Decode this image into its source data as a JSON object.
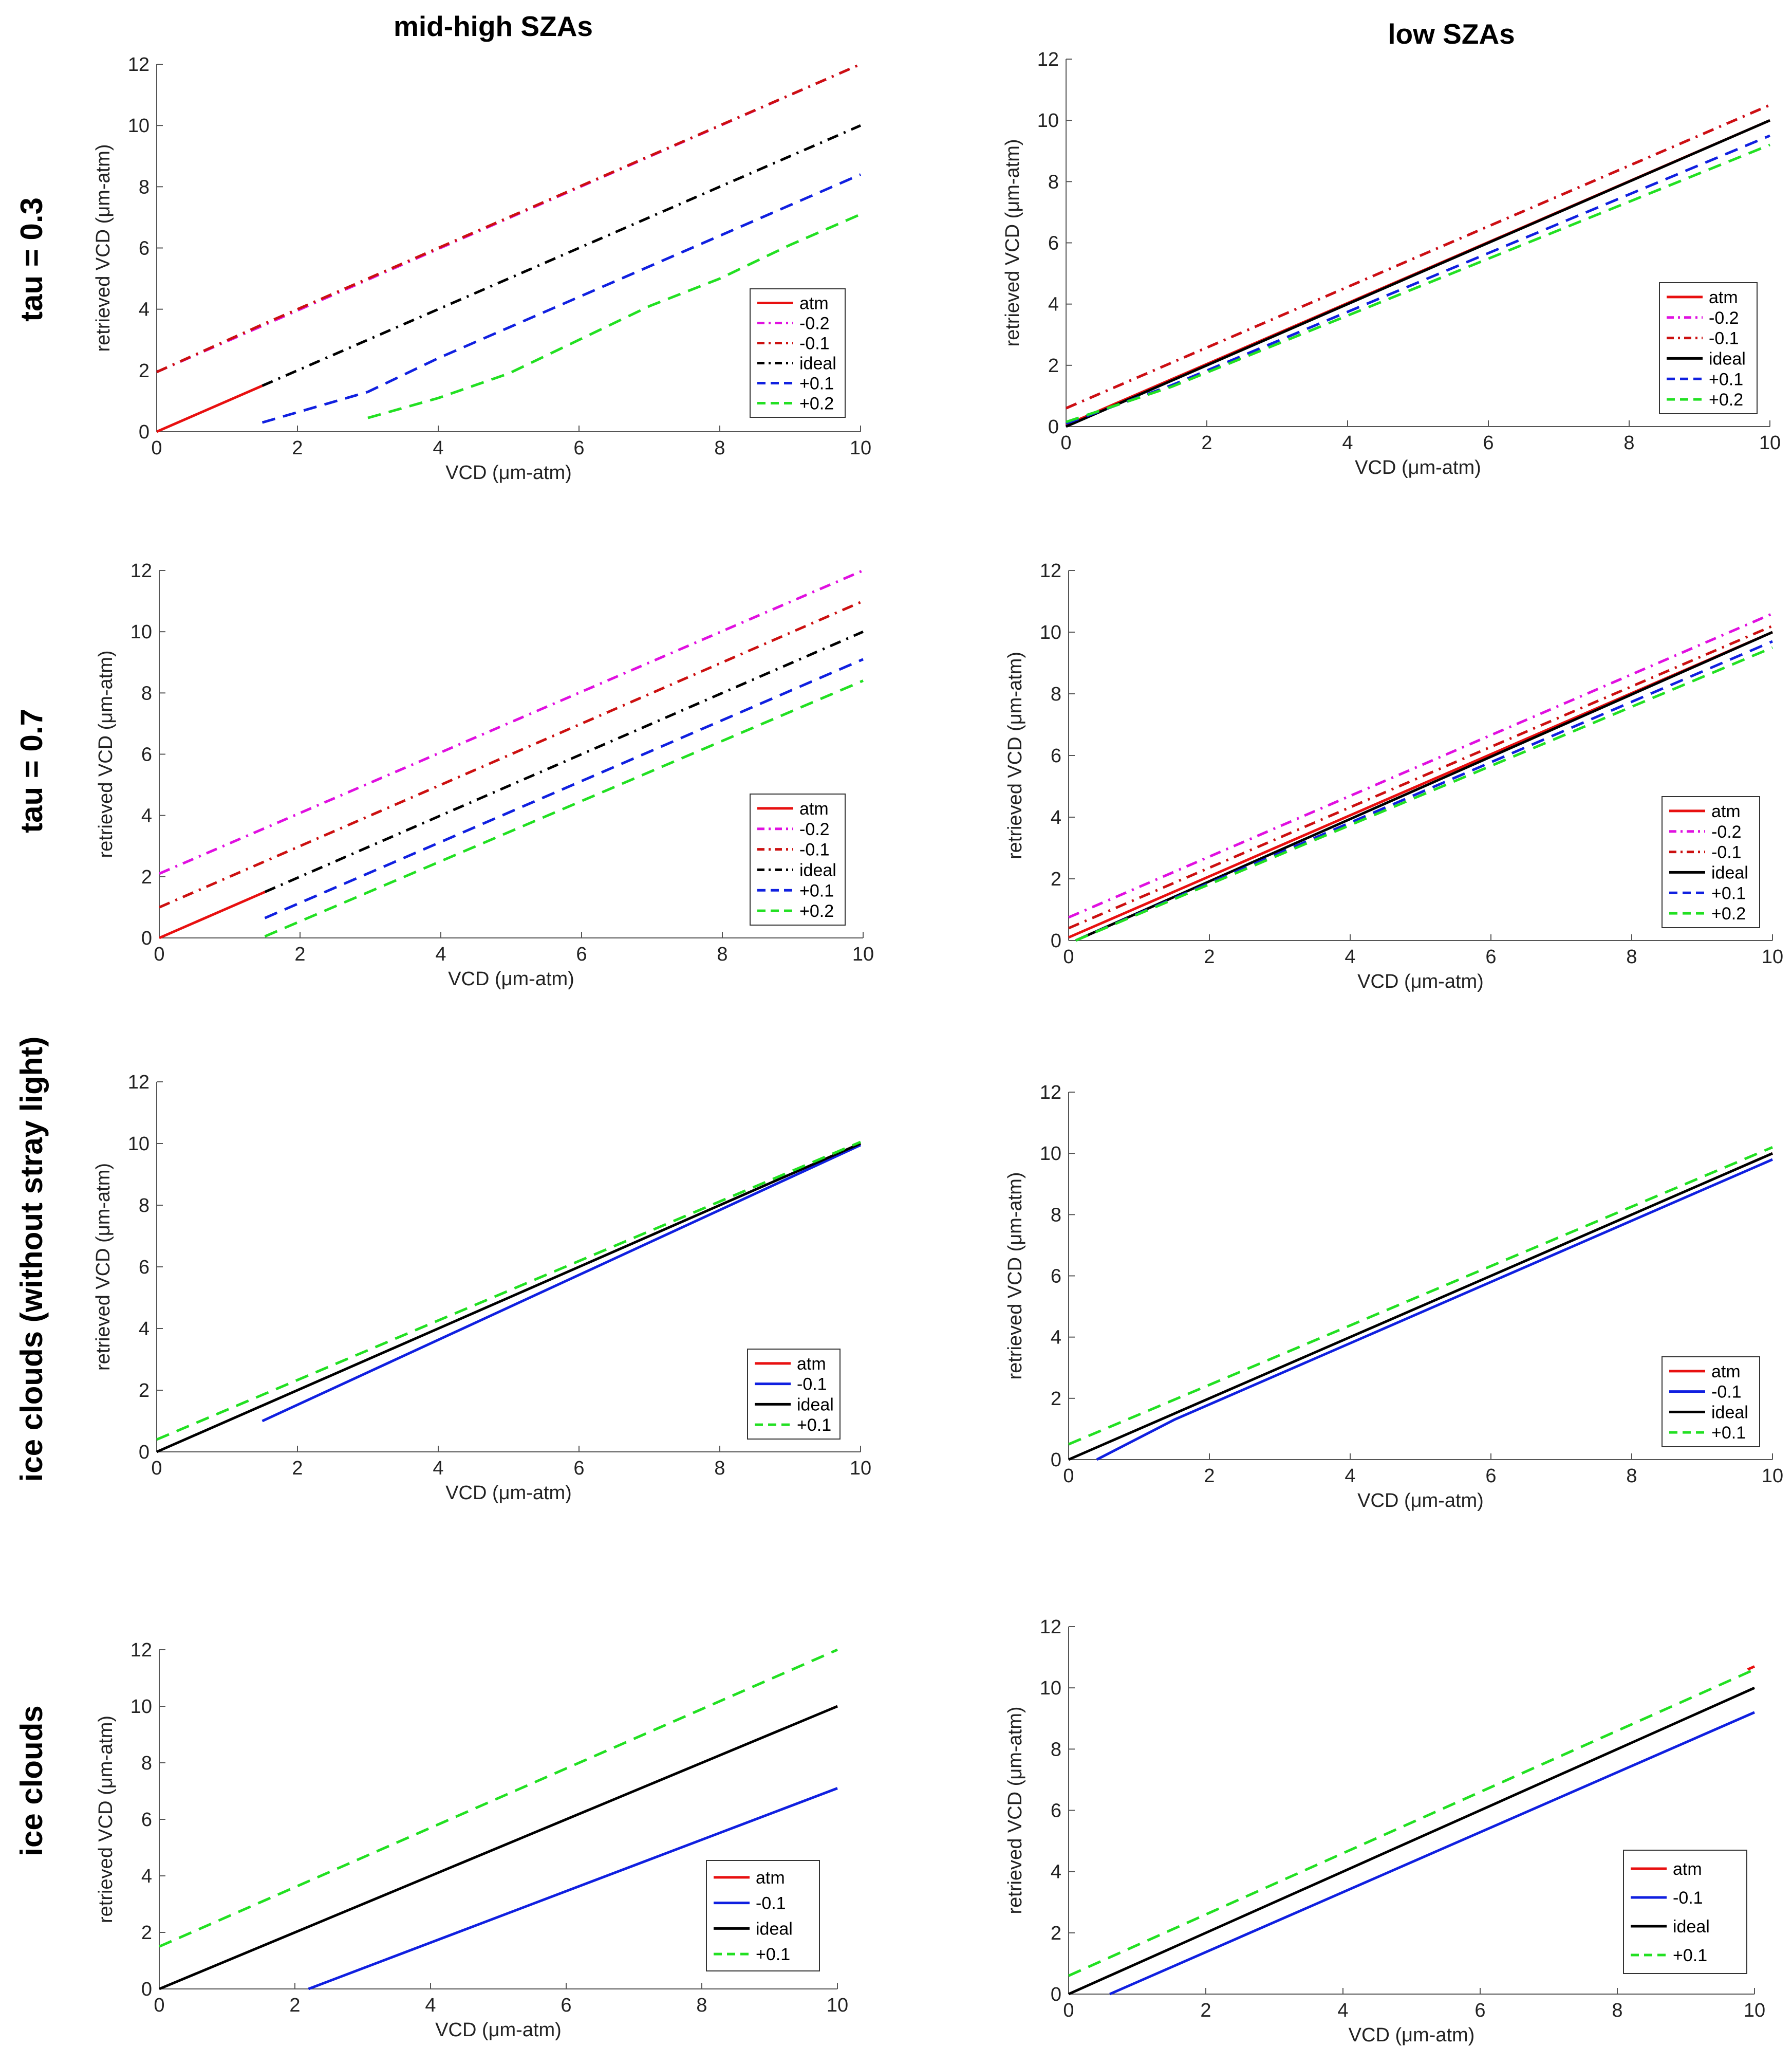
{
  "figure": {
    "col_titles": [
      "mid-high SZAs",
      "low SZAs"
    ],
    "row_labels": [
      "tau = 0.3",
      "tau = 0.7",
      "ice clouds (without stray light)",
      "ice clouds"
    ]
  },
  "colors": {
    "atm": "#e81010",
    "m02": "#e010e0",
    "m01": "#cc1010",
    "ideal": "#000000",
    "blue": "#1020e0",
    "green": "#22e022"
  },
  "chart_data": [
    {
      "type": "line",
      "panel": "tau = 0.3 / mid-high SZAs",
      "xlabel": "VCD (μm-atm)",
      "ylabel": "retrieved VCD (μm-atm)",
      "xlim": [
        0,
        10
      ],
      "ylim": [
        0,
        12
      ],
      "xticks": [
        "0",
        "2",
        "4",
        "6",
        "8",
        "10"
      ],
      "yticks": [
        "0",
        "2",
        "4",
        "6",
        "8",
        "10",
        "12"
      ],
      "series": [
        {
          "name": "atm",
          "color": "atm",
          "style": "solid",
          "x": [
            0,
            1.5
          ],
          "y": [
            0,
            1.5
          ]
        },
        {
          "name": "-0.2",
          "color": "m02",
          "style": "dashdot",
          "x": [
            0,
            10
          ],
          "y": [
            1.95,
            12
          ]
        },
        {
          "name": "-0.1",
          "color": "m01",
          "style": "dashdot",
          "x": [
            0,
            1.5,
            10
          ],
          "y": [
            1.95,
            3.5,
            12
          ]
        },
        {
          "name": "ideal",
          "color": "ideal",
          "style": "dashdot",
          "x": [
            1.5,
            10
          ],
          "y": [
            1.5,
            10
          ]
        },
        {
          "name": "+0.1",
          "color": "blue",
          "style": "dash",
          "x": [
            1.5,
            3,
            4,
            5,
            6,
            7,
            8,
            9,
            10
          ],
          "y": [
            0.3,
            1.3,
            2.4,
            3.4,
            4.4,
            5.4,
            6.4,
            7.4,
            8.4
          ]
        },
        {
          "name": "+0.2",
          "color": "green",
          "style": "dash",
          "x": [
            3,
            4,
            5,
            6,
            7,
            8,
            9,
            10
          ],
          "y": [
            0.45,
            1.1,
            1.9,
            3.0,
            4.1,
            5.0,
            6.1,
            7.1
          ]
        }
      ]
    },
    {
      "type": "line",
      "panel": "tau = 0.3 / low SZAs",
      "xlabel": "VCD (μm-atm)",
      "ylabel": "retrieved VCD (μm-atm)",
      "xlim": [
        0,
        10
      ],
      "ylim": [
        0,
        12
      ],
      "xticks": [
        "0",
        "2",
        "4",
        "6",
        "8",
        "10"
      ],
      "yticks": [
        "0",
        "2",
        "4",
        "6",
        "8",
        "10",
        "12"
      ],
      "series": [
        {
          "name": "atm",
          "color": "atm",
          "style": "solid",
          "x": [
            0,
            10
          ],
          "y": [
            0.05,
            10
          ]
        },
        {
          "name": "-0.2",
          "color": "m02",
          "style": "dashdot",
          "x": [
            0,
            10
          ],
          "y": [
            0.6,
            10.5
          ]
        },
        {
          "name": "-0.1",
          "color": "m01",
          "style": "dashdot",
          "x": [
            0,
            10
          ],
          "y": [
            0.6,
            10.5
          ]
        },
        {
          "name": "ideal",
          "color": "ideal",
          "style": "solid",
          "x": [
            0,
            10
          ],
          "y": [
            0,
            10
          ]
        },
        {
          "name": "+0.1",
          "color": "blue",
          "style": "dash",
          "x": [
            0,
            1.5,
            10
          ],
          "y": [
            0.1,
            1.35,
            9.5
          ]
        },
        {
          "name": "+0.2",
          "color": "green",
          "style": "dash",
          "x": [
            0,
            1.5,
            10
          ],
          "y": [
            0.15,
            1.3,
            9.2
          ]
        }
      ]
    },
    {
      "type": "line",
      "panel": "tau = 0.7 / mid-high SZAs",
      "xlabel": "VCD (μm-atm)",
      "ylabel": "retrieved VCD (μm-atm)",
      "xlim": [
        0,
        10
      ],
      "ylim": [
        0,
        12
      ],
      "xticks": [
        "0",
        "2",
        "4",
        "6",
        "8",
        "10"
      ],
      "yticks": [
        "0",
        "2",
        "4",
        "6",
        "8",
        "10",
        "12"
      ],
      "series": [
        {
          "name": "atm",
          "color": "atm",
          "style": "solid",
          "x": [
            0,
            1.5
          ],
          "y": [
            0,
            1.5
          ]
        },
        {
          "name": "-0.2",
          "color": "m02",
          "style": "dashdot",
          "x": [
            0,
            10
          ],
          "y": [
            2.1,
            12
          ]
        },
        {
          "name": "-0.1",
          "color": "m01",
          "style": "dashdot",
          "x": [
            0,
            10
          ],
          "y": [
            1.0,
            11
          ]
        },
        {
          "name": "ideal",
          "color": "ideal",
          "style": "dashdot",
          "x": [
            1.5,
            10
          ],
          "y": [
            1.5,
            10
          ]
        },
        {
          "name": "+0.1",
          "color": "blue",
          "style": "dash",
          "x": [
            1.5,
            10
          ],
          "y": [
            0.65,
            9.1
          ]
        },
        {
          "name": "+0.2",
          "color": "green",
          "style": "dash",
          "x": [
            1.5,
            10
          ],
          "y": [
            0.05,
            8.4
          ]
        }
      ]
    },
    {
      "type": "line",
      "panel": "tau = 0.7 / low SZAs",
      "xlabel": "VCD (μm-atm)",
      "ylabel": "retrieved VCD (μm-atm)",
      "xlim": [
        0,
        10
      ],
      "ylim": [
        0,
        12
      ],
      "xticks": [
        "0",
        "2",
        "4",
        "6",
        "8",
        "10"
      ],
      "yticks": [
        "0",
        "2",
        "4",
        "6",
        "8",
        "10",
        "12"
      ],
      "series": [
        {
          "name": "atm",
          "color": "atm",
          "style": "solid",
          "x": [
            0,
            10
          ],
          "y": [
            0.1,
            10
          ]
        },
        {
          "name": "-0.2",
          "color": "m02",
          "style": "dashdot",
          "x": [
            0,
            10
          ],
          "y": [
            0.75,
            10.6
          ]
        },
        {
          "name": "-0.1",
          "color": "m01",
          "style": "dashdot",
          "x": [
            0,
            10
          ],
          "y": [
            0.4,
            10.2
          ]
        },
        {
          "name": "ideal",
          "color": "ideal",
          "style": "solid",
          "x": [
            0.1,
            10
          ],
          "y": [
            0,
            10
          ]
        },
        {
          "name": "+0.1",
          "color": "blue",
          "style": "dash",
          "x": [
            0.1,
            10
          ],
          "y": [
            0,
            9.7
          ]
        },
        {
          "name": "+0.2",
          "color": "green",
          "style": "dash",
          "x": [
            0.1,
            10
          ],
          "y": [
            0,
            9.5
          ]
        }
      ]
    },
    {
      "type": "line",
      "panel": "ice clouds (without stray light) / mid-high SZAs",
      "xlabel": "VCD (μm-atm)",
      "ylabel": "retrieved VCD (μm-atm)",
      "xlim": [
        0,
        10
      ],
      "ylim": [
        0,
        12
      ],
      "xticks": [
        "0",
        "2",
        "4",
        "6",
        "8",
        "10"
      ],
      "yticks": [
        "0",
        "2",
        "4",
        "6",
        "8",
        "10",
        "12"
      ],
      "series": [
        {
          "name": "atm",
          "color": "atm",
          "style": "solid",
          "x": [
            9.5,
            10
          ],
          "y": [
            9.5,
            10
          ]
        },
        {
          "name": "-0.1",
          "color": "blue",
          "style": "solid",
          "x": [
            1.5,
            10
          ],
          "y": [
            1.0,
            9.95
          ]
        },
        {
          "name": "ideal",
          "color": "ideal",
          "style": "solid",
          "x": [
            0,
            10
          ],
          "y": [
            0,
            10
          ]
        },
        {
          "name": "+0.1",
          "color": "green",
          "style": "dash",
          "x": [
            0,
            10
          ],
          "y": [
            0.4,
            10.05
          ]
        }
      ]
    },
    {
      "type": "line",
      "panel": "ice clouds (without stray light) / low SZAs",
      "xlabel": "VCD (μm-atm)",
      "ylabel": "retrieved VCD (μm-atm)",
      "xlim": [
        0,
        10
      ],
      "ylim": [
        0,
        12
      ],
      "xticks": [
        "0",
        "2",
        "4",
        "6",
        "8",
        "10"
      ],
      "yticks": [
        "0",
        "2",
        "4",
        "6",
        "8",
        "10",
        "12"
      ],
      "series": [
        {
          "name": "atm",
          "color": "atm",
          "style": "solid",
          "x": [
            9.5,
            10
          ],
          "y": [
            9.5,
            10
          ]
        },
        {
          "name": "-0.1",
          "color": "blue",
          "style": "solid",
          "x": [
            0.4,
            1.5,
            10
          ],
          "y": [
            0,
            1.3,
            9.8
          ]
        },
        {
          "name": "ideal",
          "color": "ideal",
          "style": "solid",
          "x": [
            0,
            10
          ],
          "y": [
            0,
            10
          ]
        },
        {
          "name": "+0.1",
          "color": "green",
          "style": "dash",
          "x": [
            0,
            10
          ],
          "y": [
            0.5,
            10.2
          ]
        }
      ]
    },
    {
      "type": "line",
      "panel": "ice clouds / mid-high SZAs",
      "xlabel": "VCD (μm-atm)",
      "ylabel": "retrieved VCD (μm-atm)",
      "xlim": [
        0,
        10
      ],
      "ylim": [
        0,
        12
      ],
      "xticks": [
        "0",
        "2",
        "4",
        "6",
        "8",
        "10"
      ],
      "yticks": [
        "0",
        "2",
        "4",
        "6",
        "8",
        "10",
        "12"
      ],
      "series": [
        {
          "name": "atm",
          "color": "atm",
          "style": "solid",
          "x": [
            9.9,
            10
          ],
          "y": [
            9.9,
            10
          ]
        },
        {
          "name": "-0.1",
          "color": "blue",
          "style": "solid",
          "x": [
            2.2,
            10
          ],
          "y": [
            0,
            7.1
          ]
        },
        {
          "name": "ideal",
          "color": "ideal",
          "style": "solid",
          "x": [
            0,
            10
          ],
          "y": [
            0,
            10
          ]
        },
        {
          "name": "+0.1",
          "color": "green",
          "style": "dash",
          "x": [
            0,
            10
          ],
          "y": [
            1.5,
            12
          ]
        }
      ]
    },
    {
      "type": "line",
      "panel": "ice clouds / low SZAs",
      "xlabel": "VCD (μm-atm)",
      "ylabel": "retrieved VCD (μm-atm)",
      "xlim": [
        0,
        10
      ],
      "ylim": [
        0,
        12
      ],
      "xticks": [
        "0",
        "2",
        "4",
        "6",
        "8",
        "10"
      ],
      "yticks": [
        "0",
        "2",
        "4",
        "6",
        "8",
        "10",
        "12"
      ],
      "series": [
        {
          "name": "atm",
          "color": "atm",
          "style": "solid",
          "x": [
            9.9,
            10
          ],
          "y": [
            10.6,
            10.7
          ]
        },
        {
          "name": "-0.1",
          "color": "blue",
          "style": "solid",
          "x": [
            0.6,
            10
          ],
          "y": [
            0,
            9.2
          ]
        },
        {
          "name": "ideal",
          "color": "ideal",
          "style": "solid",
          "x": [
            0,
            10
          ],
          "y": [
            0,
            10
          ]
        },
        {
          "name": "+0.1",
          "color": "green",
          "style": "dash",
          "x": [
            0,
            10
          ],
          "y": [
            0.6,
            10.6
          ]
        }
      ]
    }
  ]
}
